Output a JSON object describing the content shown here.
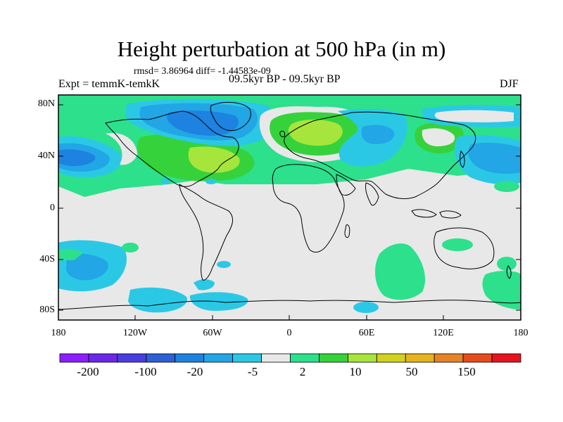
{
  "title": "Height perturbation at 500 hPa (in m)",
  "stats": "rmsd= 3.86964 diff= -1.44583e-09",
  "experiment": "Expt = temmK-temkK",
  "period": "09.5kyr BP - 09.5kyr BP",
  "season": "DJF",
  "lat_labels": [
    "80N",
    "40N",
    "0",
    "40S",
    "80S"
  ],
  "lon_labels": [
    "180",
    "120W",
    "60W",
    "0",
    "60E",
    "120E",
    "180"
  ],
  "colorbar": {
    "colors": [
      "#8c1eff",
      "#6a28e8",
      "#4b3ee0",
      "#2d5fd6",
      "#1e82e0",
      "#22a6e6",
      "#2bc8e6",
      "#e8e8e8",
      "#2de08c",
      "#36d23c",
      "#a6e63c",
      "#d2d21e",
      "#e6b41e",
      "#e68228",
      "#e64b1e",
      "#e6141e"
    ],
    "labels": [
      "-200",
      "-100",
      "-20",
      "-5",
      "2",
      "10",
      "50",
      "150"
    ]
  }
}
